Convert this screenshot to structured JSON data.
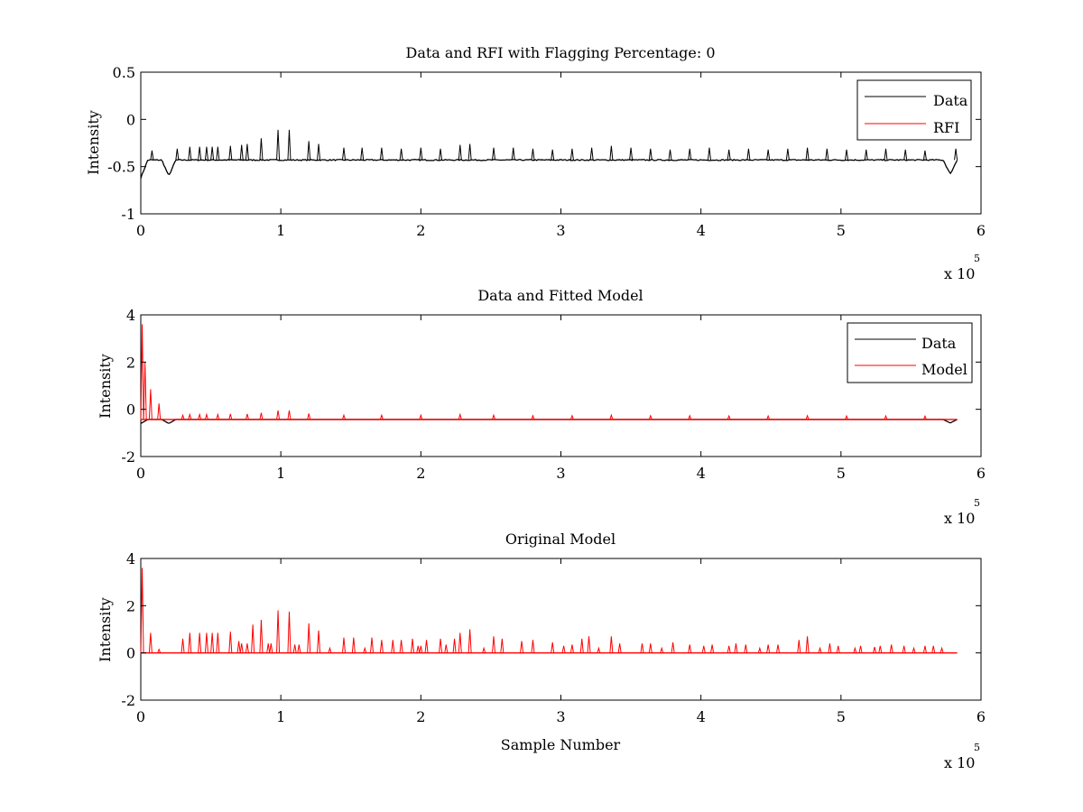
{
  "chart_data": [
    {
      "type": "line",
      "title": "Data and RFI with Flagging Percentage: 0",
      "xlabel": "",
      "ylabel": "Intensity",
      "xlim": [
        0,
        6
      ],
      "ylim": [
        -1,
        0.5
      ],
      "x_ticks": [
        "0",
        "1",
        "2",
        "3",
        "4",
        "5",
        "6"
      ],
      "y_ticks": [
        "-1",
        "-0.5",
        "0",
        "0.5"
      ],
      "x_exponent": {
        "base": "x 10",
        "power": "5"
      },
      "grid": false,
      "legend_position": "top-right",
      "legend": [
        "Data",
        "RFI"
      ],
      "series": [
        {
          "name": "Data",
          "color": "#000000",
          "baseline": -0.43,
          "x_end": 5.83,
          "spikes": [
            {
              "x": 0.08,
              "y": -0.33
            },
            {
              "x": 0.26,
              "y": -0.31
            },
            {
              "x": 0.35,
              "y": -0.29
            },
            {
              "x": 0.42,
              "y": -0.29
            },
            {
              "x": 0.47,
              "y": -0.29
            },
            {
              "x": 0.51,
              "y": -0.29
            },
            {
              "x": 0.55,
              "y": -0.29
            },
            {
              "x": 0.64,
              "y": -0.28
            },
            {
              "x": 0.72,
              "y": -0.27
            },
            {
              "x": 0.76,
              "y": -0.26
            },
            {
              "x": 0.86,
              "y": -0.2
            },
            {
              "x": 0.98,
              "y": -0.11
            },
            {
              "x": 1.06,
              "y": -0.11
            },
            {
              "x": 1.2,
              "y": -0.23
            },
            {
              "x": 1.27,
              "y": -0.26
            },
            {
              "x": 1.45,
              "y": -0.3
            },
            {
              "x": 1.58,
              "y": -0.3
            },
            {
              "x": 1.72,
              "y": -0.3
            },
            {
              "x": 1.86,
              "y": -0.31
            },
            {
              "x": 2.0,
              "y": -0.3
            },
            {
              "x": 2.14,
              "y": -0.31
            },
            {
              "x": 2.28,
              "y": -0.27
            },
            {
              "x": 2.35,
              "y": -0.26
            },
            {
              "x": 2.52,
              "y": -0.3
            },
            {
              "x": 2.66,
              "y": -0.3
            },
            {
              "x": 2.8,
              "y": -0.31
            },
            {
              "x": 2.94,
              "y": -0.32
            },
            {
              "x": 3.08,
              "y": -0.31
            },
            {
              "x": 3.22,
              "y": -0.3
            },
            {
              "x": 3.36,
              "y": -0.28
            },
            {
              "x": 3.5,
              "y": -0.3
            },
            {
              "x": 3.64,
              "y": -0.31
            },
            {
              "x": 3.78,
              "y": -0.32
            },
            {
              "x": 3.92,
              "y": -0.31
            },
            {
              "x": 4.06,
              "y": -0.3
            },
            {
              "x": 4.2,
              "y": -0.32
            },
            {
              "x": 4.34,
              "y": -0.31
            },
            {
              "x": 4.48,
              "y": -0.32
            },
            {
              "x": 4.62,
              "y": -0.31
            },
            {
              "x": 4.76,
              "y": -0.3
            },
            {
              "x": 4.9,
              "y": -0.31
            },
            {
              "x": 5.04,
              "y": -0.32
            },
            {
              "x": 5.18,
              "y": -0.32
            },
            {
              "x": 5.32,
              "y": -0.31
            },
            {
              "x": 5.46,
              "y": -0.32
            },
            {
              "x": 5.6,
              "y": -0.33
            },
            {
              "x": 5.82,
              "y": -0.31
            }
          ],
          "dips": [
            {
              "x": 0.0,
              "y": -0.62
            },
            {
              "x": 0.2,
              "y": -0.6
            },
            {
              "x": 5.78,
              "y": -0.58
            }
          ]
        },
        {
          "name": "RFI",
          "color": "#ff0000",
          "values": []
        }
      ]
    },
    {
      "type": "line",
      "title": "Data and Fitted Model",
      "xlabel": "",
      "ylabel": "Intensity",
      "xlim": [
        0,
        6
      ],
      "ylim": [
        -2,
        4
      ],
      "x_ticks": [
        "0",
        "1",
        "2",
        "3",
        "4",
        "5",
        "6"
      ],
      "y_ticks": [
        "-2",
        "0",
        "2",
        "4"
      ],
      "x_exponent": {
        "base": "x 10",
        "power": "5"
      },
      "grid": false,
      "legend_position": "top-right",
      "legend": [
        "Data",
        "Model"
      ],
      "series": [
        {
          "name": "Data",
          "color": "#000000",
          "baseline": -0.43,
          "x_end": 5.83,
          "dips": [
            {
              "x": 0.0,
              "y": -0.6
            },
            {
              "x": 0.2,
              "y": -0.6
            },
            {
              "x": 5.78,
              "y": -0.58
            }
          ]
        },
        {
          "name": "Model",
          "color": "#ff0000",
          "baseline": -0.43,
          "x_end": 5.83,
          "spikes": [
            {
              "x": 0.01,
              "y": 3.6
            },
            {
              "x": 0.03,
              "y": 2.0
            },
            {
              "x": 0.07,
              "y": 0.85
            },
            {
              "x": 0.13,
              "y": 0.25
            },
            {
              "x": 0.3,
              "y": -0.25
            },
            {
              "x": 0.35,
              "y": -0.22
            },
            {
              "x": 0.42,
              "y": -0.22
            },
            {
              "x": 0.47,
              "y": -0.22
            },
            {
              "x": 0.55,
              "y": -0.22
            },
            {
              "x": 0.64,
              "y": -0.2
            },
            {
              "x": 0.76,
              "y": -0.2
            },
            {
              "x": 0.86,
              "y": -0.15
            },
            {
              "x": 0.98,
              "y": -0.05
            },
            {
              "x": 1.06,
              "y": -0.05
            },
            {
              "x": 1.2,
              "y": -0.18
            },
            {
              "x": 1.45,
              "y": -0.25
            },
            {
              "x": 1.72,
              "y": -0.25
            },
            {
              "x": 2.0,
              "y": -0.25
            },
            {
              "x": 2.28,
              "y": -0.22
            },
            {
              "x": 2.52,
              "y": -0.25
            },
            {
              "x": 2.8,
              "y": -0.27
            },
            {
              "x": 3.08,
              "y": -0.27
            },
            {
              "x": 3.36,
              "y": -0.25
            },
            {
              "x": 3.64,
              "y": -0.27
            },
            {
              "x": 3.92,
              "y": -0.27
            },
            {
              "x": 4.2,
              "y": -0.28
            },
            {
              "x": 4.48,
              "y": -0.28
            },
            {
              "x": 4.76,
              "y": -0.27
            },
            {
              "x": 5.04,
              "y": -0.28
            },
            {
              "x": 5.32,
              "y": -0.28
            },
            {
              "x": 5.6,
              "y": -0.29
            }
          ]
        }
      ]
    },
    {
      "type": "line",
      "title": "Original Model",
      "xlabel": "Sample Number",
      "ylabel": "Intensity",
      "xlim": [
        0,
        6
      ],
      "ylim": [
        -2,
        4
      ],
      "x_ticks": [
        "0",
        "1",
        "2",
        "3",
        "4",
        "5",
        "6"
      ],
      "y_ticks": [
        "-2",
        "0",
        "2",
        "4"
      ],
      "x_exponent": {
        "base": "x 10",
        "power": "5"
      },
      "grid": false,
      "legend_position": "none",
      "legend": [],
      "series": [
        {
          "name": "Original Model",
          "color": "#ff0000",
          "baseline": 0,
          "x_end": 5.83,
          "spikes": [
            {
              "x": 0.01,
              "y": 3.6
            },
            {
              "x": 0.07,
              "y": 0.85
            },
            {
              "x": 0.13,
              "y": 0.15
            },
            {
              "x": 0.3,
              "y": 0.6
            },
            {
              "x": 0.35,
              "y": 0.85
            },
            {
              "x": 0.42,
              "y": 0.85
            },
            {
              "x": 0.47,
              "y": 0.85
            },
            {
              "x": 0.51,
              "y": 0.85
            },
            {
              "x": 0.55,
              "y": 0.85
            },
            {
              "x": 0.64,
              "y": 0.9
            },
            {
              "x": 0.7,
              "y": 0.5
            },
            {
              "x": 0.72,
              "y": 0.4
            },
            {
              "x": 0.76,
              "y": 0.4
            },
            {
              "x": 0.8,
              "y": 1.2
            },
            {
              "x": 0.86,
              "y": 1.4
            },
            {
              "x": 0.91,
              "y": 0.4
            },
            {
              "x": 0.93,
              "y": 0.4
            },
            {
              "x": 0.98,
              "y": 1.8
            },
            {
              "x": 1.06,
              "y": 1.75
            },
            {
              "x": 1.1,
              "y": 0.35
            },
            {
              "x": 1.13,
              "y": 0.35
            },
            {
              "x": 1.2,
              "y": 1.25
            },
            {
              "x": 1.27,
              "y": 0.95
            },
            {
              "x": 1.35,
              "y": 0.2
            },
            {
              "x": 1.45,
              "y": 0.65
            },
            {
              "x": 1.52,
              "y": 0.65
            },
            {
              "x": 1.6,
              "y": 0.2
            },
            {
              "x": 1.65,
              "y": 0.65
            },
            {
              "x": 1.72,
              "y": 0.55
            },
            {
              "x": 1.8,
              "y": 0.55
            },
            {
              "x": 1.86,
              "y": 0.55
            },
            {
              "x": 1.94,
              "y": 0.6
            },
            {
              "x": 1.98,
              "y": 0.3
            },
            {
              "x": 2.0,
              "y": 0.3
            },
            {
              "x": 2.04,
              "y": 0.55
            },
            {
              "x": 2.14,
              "y": 0.6
            },
            {
              "x": 2.18,
              "y": 0.35
            },
            {
              "x": 2.24,
              "y": 0.6
            },
            {
              "x": 2.28,
              "y": 0.85
            },
            {
              "x": 2.35,
              "y": 1.0
            },
            {
              "x": 2.45,
              "y": 0.2
            },
            {
              "x": 2.52,
              "y": 0.7
            },
            {
              "x": 2.58,
              "y": 0.6
            },
            {
              "x": 2.72,
              "y": 0.5
            },
            {
              "x": 2.8,
              "y": 0.55
            },
            {
              "x": 2.94,
              "y": 0.45
            },
            {
              "x": 3.02,
              "y": 0.3
            },
            {
              "x": 3.08,
              "y": 0.35
            },
            {
              "x": 3.15,
              "y": 0.6
            },
            {
              "x": 3.2,
              "y": 0.7
            },
            {
              "x": 3.27,
              "y": 0.2
            },
            {
              "x": 3.36,
              "y": 0.7
            },
            {
              "x": 3.42,
              "y": 0.4
            },
            {
              "x": 3.58,
              "y": 0.4
            },
            {
              "x": 3.64,
              "y": 0.4
            },
            {
              "x": 3.72,
              "y": 0.2
            },
            {
              "x": 3.8,
              "y": 0.45
            },
            {
              "x": 3.92,
              "y": 0.35
            },
            {
              "x": 4.02,
              "y": 0.3
            },
            {
              "x": 4.08,
              "y": 0.35
            },
            {
              "x": 4.2,
              "y": 0.3
            },
            {
              "x": 4.25,
              "y": 0.4
            },
            {
              "x": 4.32,
              "y": 0.35
            },
            {
              "x": 4.42,
              "y": 0.2
            },
            {
              "x": 4.48,
              "y": 0.35
            },
            {
              "x": 4.55,
              "y": 0.35
            },
            {
              "x": 4.7,
              "y": 0.55
            },
            {
              "x": 4.76,
              "y": 0.7
            },
            {
              "x": 4.85,
              "y": 0.2
            },
            {
              "x": 4.92,
              "y": 0.4
            },
            {
              "x": 4.98,
              "y": 0.3
            },
            {
              "x": 5.1,
              "y": 0.2
            },
            {
              "x": 5.14,
              "y": 0.3
            },
            {
              "x": 5.24,
              "y": 0.25
            },
            {
              "x": 5.28,
              "y": 0.3
            },
            {
              "x": 5.36,
              "y": 0.35
            },
            {
              "x": 5.45,
              "y": 0.3
            },
            {
              "x": 5.52,
              "y": 0.2
            },
            {
              "x": 5.6,
              "y": 0.3
            },
            {
              "x": 5.66,
              "y": 0.3
            },
            {
              "x": 5.72,
              "y": 0.2
            }
          ]
        }
      ]
    }
  ]
}
